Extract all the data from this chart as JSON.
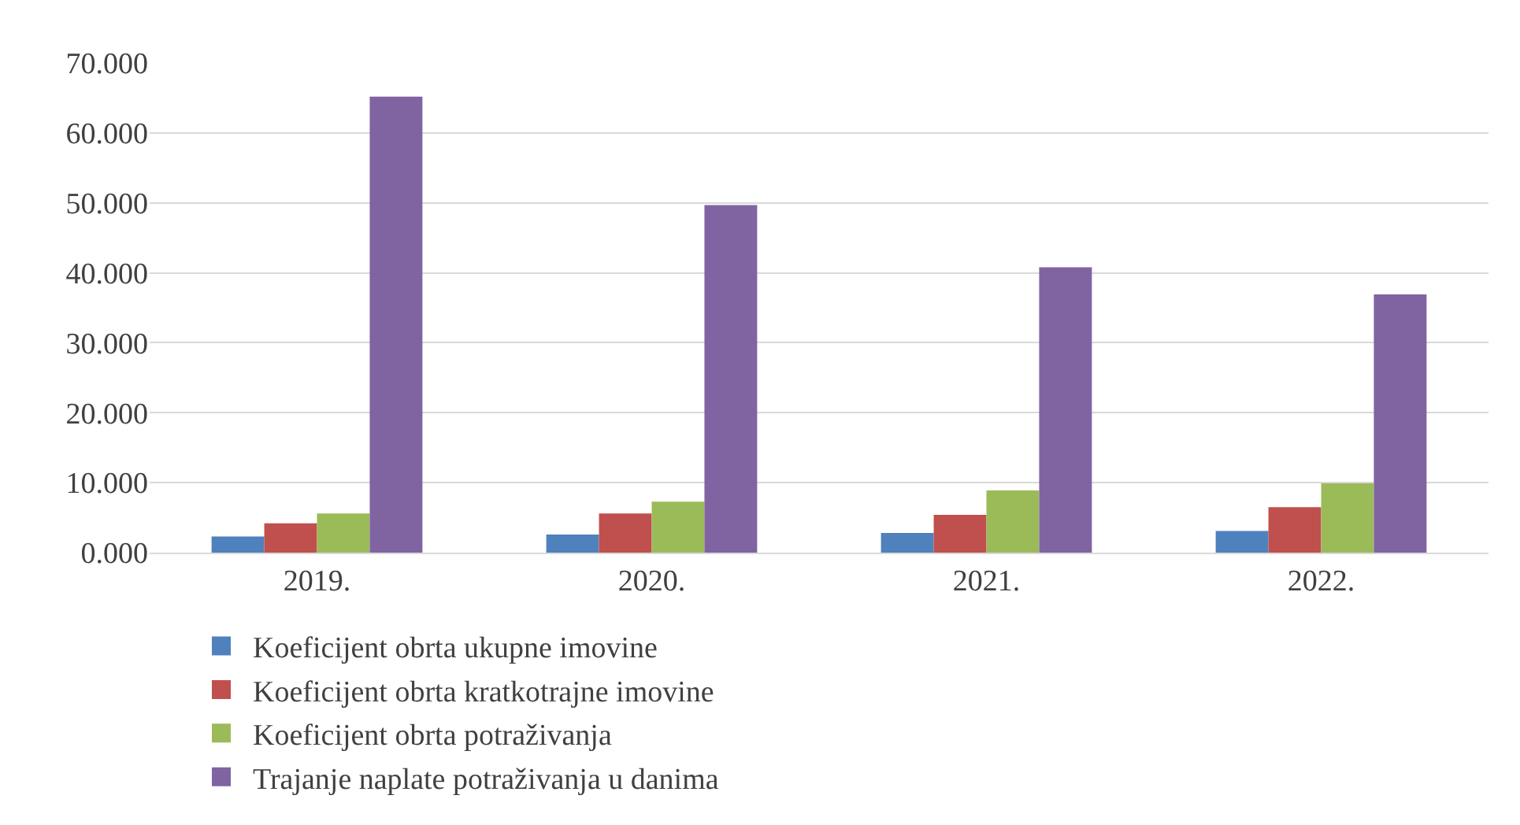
{
  "chart_data": {
    "type": "bar",
    "categories": [
      "2019.",
      "2020.",
      "2021.",
      "2022."
    ],
    "series": [
      {
        "name": "Koeficijent obrta ukupne imovine",
        "color": "#4f81bd",
        "values": [
          2.3,
          2.6,
          2.8,
          3.1
        ]
      },
      {
        "name": "Koeficijent obrta kratkotrajne imovine",
        "color": "#c0504d",
        "values": [
          4.2,
          5.6,
          5.4,
          6.5
        ]
      },
      {
        "name": "Koeficijent obrta potraživanja",
        "color": "#9bbb59",
        "values": [
          5.6,
          7.3,
          8.9,
          9.9
        ]
      },
      {
        "name": "Trajanje naplate potraživanja u danima",
        "color": "#8064a2",
        "values": [
          65.2,
          49.7,
          40.8,
          36.9
        ]
      }
    ],
    "ylim": [
      0,
      70
    ],
    "yticks": [
      {
        "value": 0,
        "label": "0.000"
      },
      {
        "value": 10,
        "label": "10.000"
      },
      {
        "value": 20,
        "label": "20.000"
      },
      {
        "value": 30,
        "label": "30.000"
      },
      {
        "value": 40,
        "label": "40.000"
      },
      {
        "value": 50,
        "label": "50.000"
      },
      {
        "value": 60,
        "label": "60.000"
      },
      {
        "value": 70,
        "label": "70.000"
      }
    ],
    "grid": "y",
    "legend": "bottom"
  }
}
